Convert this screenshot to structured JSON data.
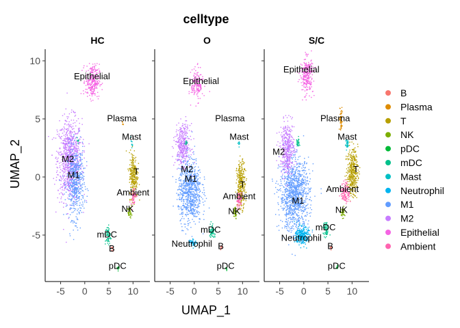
{
  "chart_data": {
    "type": "scatter",
    "title": "celltype",
    "xlabel": "UMAP_1",
    "ylabel": "UMAP_2",
    "xlim": [
      -8.2,
      13.5
    ],
    "ylim": [
      -9.0,
      11.0
    ],
    "x_ticks": [
      -5,
      0,
      5,
      10
    ],
    "y_ticks": [
      -5,
      0,
      5,
      10
    ],
    "legend_position": "right",
    "panels": [
      {
        "name": "HC",
        "labels": [
          {
            "text": "Epithelial",
            "x": 1.5,
            "y": 8.4
          },
          {
            "text": "Plasma",
            "x": 7.7,
            "y": 4.8
          },
          {
            "text": "Mast",
            "x": 9.7,
            "y": 3.2
          },
          {
            "text": "M2",
            "x": -3.5,
            "y": 1.3
          },
          {
            "text": "M1",
            "x": -2.3,
            "y": -0.1
          },
          {
            "text": "T",
            "x": 10.7,
            "y": 0.2
          },
          {
            "text": "Ambient",
            "x": 10.0,
            "y": -1.6
          },
          {
            "text": "NK",
            "x": 8.9,
            "y": -3.0
          },
          {
            "text": "mDC",
            "x": 4.6,
            "y": -5.2
          },
          {
            "text": "B",
            "x": 5.6,
            "y": -6.4
          },
          {
            "text": "pDC",
            "x": 6.8,
            "y": -7.9
          }
        ]
      },
      {
        "name": "O",
        "labels": [
          {
            "text": "Epithelial",
            "x": 1.4,
            "y": 8.0
          },
          {
            "text": "Plasma",
            "x": 7.4,
            "y": 4.8
          },
          {
            "text": "Mast",
            "x": 9.3,
            "y": 3.2
          },
          {
            "text": "M2",
            "x": -1.5,
            "y": 0.4
          },
          {
            "text": "M1",
            "x": -0.7,
            "y": -0.4
          },
          {
            "text": "T",
            "x": 10.0,
            "y": -0.9
          },
          {
            "text": "Ambient",
            "x": 9.3,
            "y": -1.9
          },
          {
            "text": "NK",
            "x": 8.3,
            "y": -3.2
          },
          {
            "text": "mDC",
            "x": 3.4,
            "y": -4.8
          },
          {
            "text": "Neutrophil",
            "x": -0.5,
            "y": -6.0
          },
          {
            "text": "B",
            "x": 5.5,
            "y": -6.2
          },
          {
            "text": "pDC",
            "x": 6.5,
            "y": -7.9
          }
        ]
      },
      {
        "name": "S/C",
        "labels": [
          {
            "text": "Epithelial",
            "x": -0.5,
            "y": 9.0
          },
          {
            "text": "Plasma",
            "x": 6.5,
            "y": 4.8
          },
          {
            "text": "Mast",
            "x": 9.0,
            "y": 3.2
          },
          {
            "text": "M2",
            "x": -5.2,
            "y": 1.9
          },
          {
            "text": "T",
            "x": 10.8,
            "y": 0.4
          },
          {
            "text": "Ambient",
            "x": 8.0,
            "y": -1.3
          },
          {
            "text": "M1",
            "x": -1.2,
            "y": -2.3
          },
          {
            "text": "NK",
            "x": 7.8,
            "y": -3.1
          },
          {
            "text": "mDC",
            "x": 4.5,
            "y": -4.6
          },
          {
            "text": "Neutrophil",
            "x": -0.5,
            "y": -5.5
          },
          {
            "text": "B",
            "x": 5.5,
            "y": -6.2
          },
          {
            "text": "pDC",
            "x": 6.8,
            "y": -7.9
          }
        ]
      }
    ],
    "legend": [
      {
        "name": "B",
        "color": "#F8766D"
      },
      {
        "name": "Plasma",
        "color": "#DE8C00"
      },
      {
        "name": "T",
        "color": "#B79F00"
      },
      {
        "name": "NK",
        "color": "#7CAE00"
      },
      {
        "name": "pDC",
        "color": "#00BA38"
      },
      {
        "name": "mDC",
        "color": "#00C08B"
      },
      {
        "name": "Mast",
        "color": "#00BFC4"
      },
      {
        "name": "Neutrophil",
        "color": "#00B4F0"
      },
      {
        "name": "M1",
        "color": "#619CFF"
      },
      {
        "name": "M2",
        "color": "#C77CFF"
      },
      {
        "name": "Epithelial",
        "color": "#F564E3"
      },
      {
        "name": "Ambient",
        "color": "#FF64B0"
      }
    ]
  }
}
